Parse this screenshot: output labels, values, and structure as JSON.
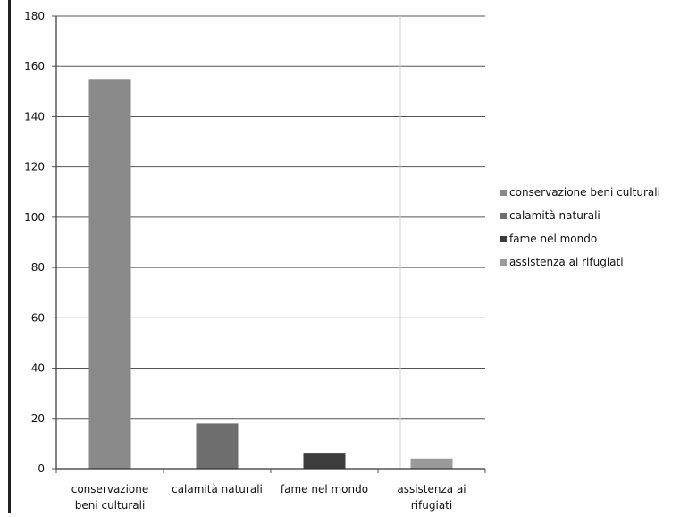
{
  "chart_data": {
    "type": "bar",
    "title": "",
    "xlabel": "",
    "ylabel": "",
    "ylim": [
      0,
      180
    ],
    "yticks": [
      0,
      20,
      40,
      60,
      80,
      100,
      120,
      140,
      160,
      180
    ],
    "grid": true,
    "legend_position": "right",
    "categories": [
      [
        "conservazione",
        "beni culturali"
      ],
      [
        "calamità naturali"
      ],
      [
        "fame nel mondo"
      ],
      [
        "assistenza ai",
        "rifugiati"
      ]
    ],
    "legend": [
      "conservazione beni culturali",
      "calamità naturali",
      "fame nel mondo",
      "assistenza ai rifugiati"
    ],
    "values": [
      155,
      18,
      6,
      4
    ],
    "colors": [
      "#8a8a8a",
      "#6e6e6e",
      "#3c3c3c",
      "#9a9a9a"
    ]
  }
}
